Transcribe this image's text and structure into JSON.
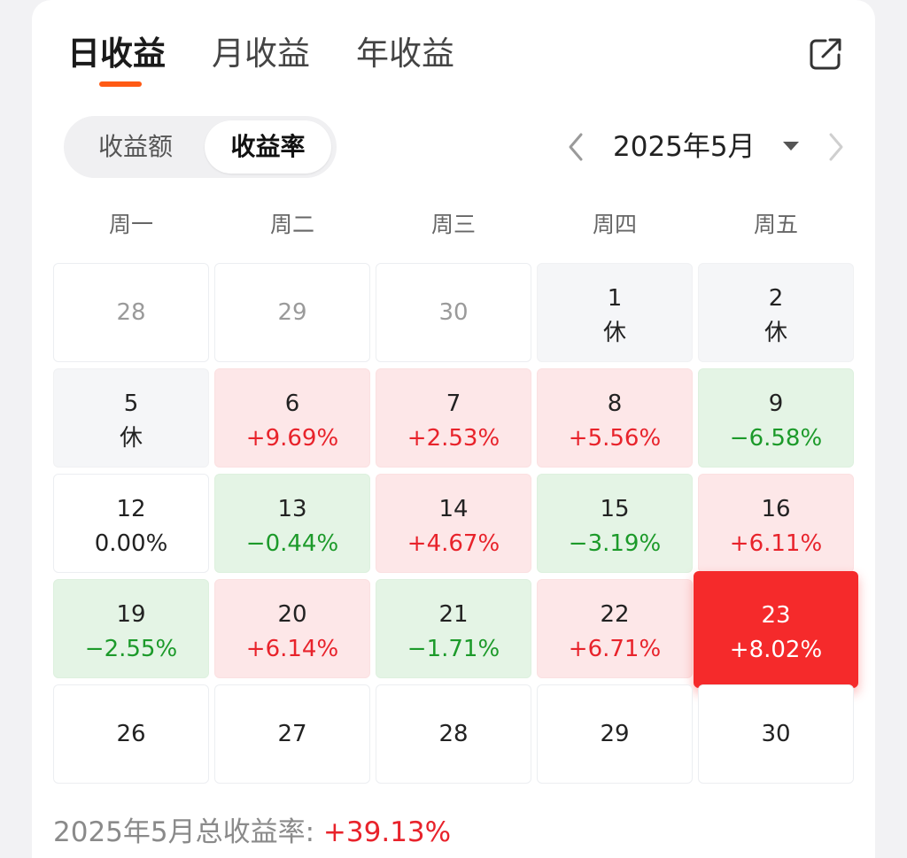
{
  "tabs": [
    {
      "label": "日收益",
      "active": true
    },
    {
      "label": "月收益",
      "active": false
    },
    {
      "label": "年收益",
      "active": false
    }
  ],
  "share_icon": "share-export-icon",
  "toggle": {
    "left": "收益额",
    "right": "收益率",
    "selected": "收益率"
  },
  "month_nav": {
    "label": "2025年5月",
    "prev_icon": "chevron-left-icon",
    "next_icon": "chevron-right-icon",
    "dropdown_icon": "caret-down-icon"
  },
  "weekdays": [
    "周一",
    "周二",
    "周三",
    "周四",
    "周五"
  ],
  "colors": {
    "accent": "#ff5a14",
    "positive": "#e8232b",
    "negative": "#1c9a2a",
    "positive_bg": "#fde7e8",
    "negative_bg": "#e4f4e5",
    "selected_bg": "#f52a2b"
  },
  "calendar": [
    [
      {
        "day": "28",
        "value": "",
        "kind": "other"
      },
      {
        "day": "29",
        "value": "",
        "kind": "other"
      },
      {
        "day": "30",
        "value": "",
        "kind": "other"
      },
      {
        "day": "1",
        "value": "休",
        "kind": "rest"
      },
      {
        "day": "2",
        "value": "休",
        "kind": "rest"
      }
    ],
    [
      {
        "day": "5",
        "value": "休",
        "kind": "rest"
      },
      {
        "day": "6",
        "value": "+9.69%",
        "kind": "up"
      },
      {
        "day": "7",
        "value": "+2.53%",
        "kind": "up"
      },
      {
        "day": "8",
        "value": "+5.56%",
        "kind": "up"
      },
      {
        "day": "9",
        "value": "−6.58%",
        "kind": "down"
      }
    ],
    [
      {
        "day": "12",
        "value": "0.00%",
        "kind": "zero"
      },
      {
        "day": "13",
        "value": "−0.44%",
        "kind": "down"
      },
      {
        "day": "14",
        "value": "+4.67%",
        "kind": "up"
      },
      {
        "day": "15",
        "value": "−3.19%",
        "kind": "down"
      },
      {
        "day": "16",
        "value": "+6.11%",
        "kind": "up"
      }
    ],
    [
      {
        "day": "19",
        "value": "−2.55%",
        "kind": "down"
      },
      {
        "day": "20",
        "value": "+6.14%",
        "kind": "up"
      },
      {
        "day": "21",
        "value": "−1.71%",
        "kind": "down"
      },
      {
        "day": "22",
        "value": "+6.71%",
        "kind": "up"
      },
      {
        "day": "23",
        "value": "+8.02%",
        "kind": "selected"
      }
    ],
    [
      {
        "day": "26",
        "value": "",
        "kind": "plain"
      },
      {
        "day": "27",
        "value": "",
        "kind": "plain"
      },
      {
        "day": "28",
        "value": "",
        "kind": "plain"
      },
      {
        "day": "29",
        "value": "",
        "kind": "plain"
      },
      {
        "day": "30",
        "value": "",
        "kind": "plain"
      }
    ]
  ],
  "summary": {
    "label": "2025年5月总收益率: ",
    "value": "+39.13%"
  }
}
